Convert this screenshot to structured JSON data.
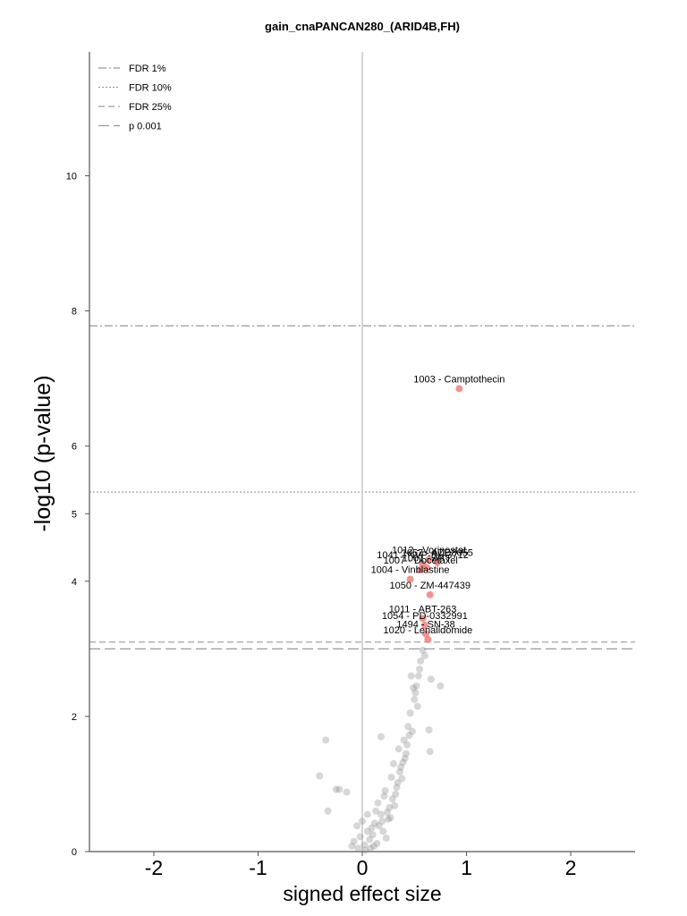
{
  "chart_data": {
    "type": "scatter",
    "title": "gain_cnaPANCAN280_(ARID4B,FH)",
    "xlabel": "signed effect size",
    "ylabel": "-log10 (p-value)",
    "xlim": [
      -2.6,
      2.7
    ],
    "ylim": [
      0,
      11.7
    ],
    "x_ticks": [
      -2,
      -1,
      0,
      1,
      2
    ],
    "y_ticks": [
      0,
      2,
      4,
      5,
      6,
      8,
      10
    ],
    "grid": false,
    "legend_position": "top-left",
    "thresholds": [
      {
        "name": "FDR 1%",
        "y": 7.78,
        "style": "dashdot"
      },
      {
        "name": "FDR 10%",
        "y": 5.32,
        "style": "dotted"
      },
      {
        "name": "FDR 25%",
        "y": 3.1,
        "style": "dashed"
      },
      {
        "name": "p 0.001",
        "y": 3.0,
        "style": "longdash"
      }
    ],
    "colors": {
      "significant": "#f08080",
      "nonsignificant": "#8c8c8c",
      "threshold": "#9a9a9a",
      "zero_line": "#c8c8c8",
      "axis": "#555555"
    },
    "significant_points": [
      {
        "label": "1003 - Camptothecin",
        "x": 0.93,
        "y": 6.85
      },
      {
        "label": "1012 - Vorinostat",
        "x": 0.64,
        "y": 4.32
      },
      {
        "label": "1057 - AZD8055",
        "x": 0.72,
        "y": 4.28
      },
      {
        "label": "1041 - NVP-BHG712",
        "x": 0.58,
        "y": 4.25
      },
      {
        "label": "1001 - AKT",
        "x": 0.62,
        "y": 4.2
      },
      {
        "label": "1007 - Docetaxel",
        "x": 0.56,
        "y": 4.17
      },
      {
        "label": "1004 - Vinblastine",
        "x": 0.46,
        "y": 4.03
      },
      {
        "label": "1050 - ZM-447439",
        "x": 0.65,
        "y": 3.8
      },
      {
        "label": "1011 - ABT-263",
        "x": 0.58,
        "y": 3.45
      },
      {
        "label": "1054 - PD-0332991",
        "x": 0.6,
        "y": 3.35
      },
      {
        "label": "1494 - SN-38",
        "x": 0.61,
        "y": 3.22
      },
      {
        "label": "1020 - Lenalidomide",
        "x": 0.63,
        "y": 3.14
      }
    ],
    "nonsignificant_points": [
      {
        "x": -0.35,
        "y": 1.65
      },
      {
        "x": -0.41,
        "y": 1.12
      },
      {
        "x": -0.22,
        "y": 0.92
      },
      {
        "x": -0.15,
        "y": 0.88
      },
      {
        "x": -0.33,
        "y": 0.6
      },
      {
        "x": -0.25,
        "y": 0.92
      },
      {
        "x": -0.05,
        "y": 0.38
      },
      {
        "x": -0.02,
        "y": 0.22
      },
      {
        "x": 0.02,
        "y": 0.1
      },
      {
        "x": -0.08,
        "y": 0.15
      },
      {
        "x": 0.05,
        "y": 0.3
      },
      {
        "x": -0.1,
        "y": 0.08
      },
      {
        "x": 0.08,
        "y": 0.05
      },
      {
        "x": 0.12,
        "y": 0.42
      },
      {
        "x": 0.15,
        "y": 0.72
      },
      {
        "x": 0.18,
        "y": 0.55
      },
      {
        "x": 0.22,
        "y": 0.9
      },
      {
        "x": 0.25,
        "y": 0.48
      },
      {
        "x": 0.28,
        "y": 1.1
      },
      {
        "x": 0.3,
        "y": 1.3
      },
      {
        "x": 0.32,
        "y": 0.85
      },
      {
        "x": 0.35,
        "y": 1.52
      },
      {
        "x": 0.37,
        "y": 1.25
      },
      {
        "x": 0.4,
        "y": 1.65
      },
      {
        "x": 0.42,
        "y": 1.45
      },
      {
        "x": 0.44,
        "y": 1.85
      },
      {
        "x": 0.46,
        "y": 2.05
      },
      {
        "x": 0.48,
        "y": 1.78
      },
      {
        "x": 0.5,
        "y": 2.25
      },
      {
        "x": 0.52,
        "y": 2.45
      },
      {
        "x": 0.54,
        "y": 2.6
      },
      {
        "x": 0.56,
        "y": 2.82
      },
      {
        "x": 0.58,
        "y": 2.98
      },
      {
        "x": 0.47,
        "y": 2.6
      },
      {
        "x": 0.49,
        "y": 2.42
      },
      {
        "x": 0.51,
        "y": 2.35
      },
      {
        "x": 0.66,
        "y": 2.55
      },
      {
        "x": 0.75,
        "y": 2.45
      },
      {
        "x": 0.64,
        "y": 1.8
      },
      {
        "x": 0.65,
        "y": 1.48
      },
      {
        "x": 0.18,
        "y": 1.7
      },
      {
        "x": 0.05,
        "y": 0.55
      },
      {
        "x": 0.0,
        "y": 0.45
      },
      {
        "x": 0.1,
        "y": 0.25
      },
      {
        "x": 0.2,
        "y": 0.3
      },
      {
        "x": 0.26,
        "y": 0.65
      },
      {
        "x": 0.33,
        "y": 0.95
      },
      {
        "x": 0.38,
        "y": 1.08
      },
      {
        "x": 0.41,
        "y": 1.38
      },
      {
        "x": 0.43,
        "y": 1.58
      },
      {
        "x": 0.45,
        "y": 1.72
      },
      {
        "x": 0.53,
        "y": 2.15
      },
      {
        "x": 0.55,
        "y": 2.7
      },
      {
        "x": 0.6,
        "y": 2.9
      },
      {
        "x": 0.07,
        "y": 0.18
      },
      {
        "x": 0.14,
        "y": 0.12
      },
      {
        "x": 0.23,
        "y": 0.2
      },
      {
        "x": -0.04,
        "y": 0.05
      },
      {
        "x": 0.16,
        "y": 0.38
      },
      {
        "x": 0.29,
        "y": 0.78
      },
      {
        "x": 0.36,
        "y": 1.18
      },
      {
        "x": 0.39,
        "y": 1.32
      },
      {
        "x": 0.24,
        "y": 0.58
      },
      {
        "x": 0.19,
        "y": 0.45
      },
      {
        "x": 0.11,
        "y": 0.08
      },
      {
        "x": 0.03,
        "y": 0.02
      },
      {
        "x": 0.31,
        "y": 0.68
      },
      {
        "x": 0.27,
        "y": 0.5
      },
      {
        "x": 0.34,
        "y": 1.02
      },
      {
        "x": 0.13,
        "y": 0.6
      },
      {
        "x": 0.21,
        "y": 0.82
      },
      {
        "x": 0.09,
        "y": 0.35
      }
    ]
  }
}
